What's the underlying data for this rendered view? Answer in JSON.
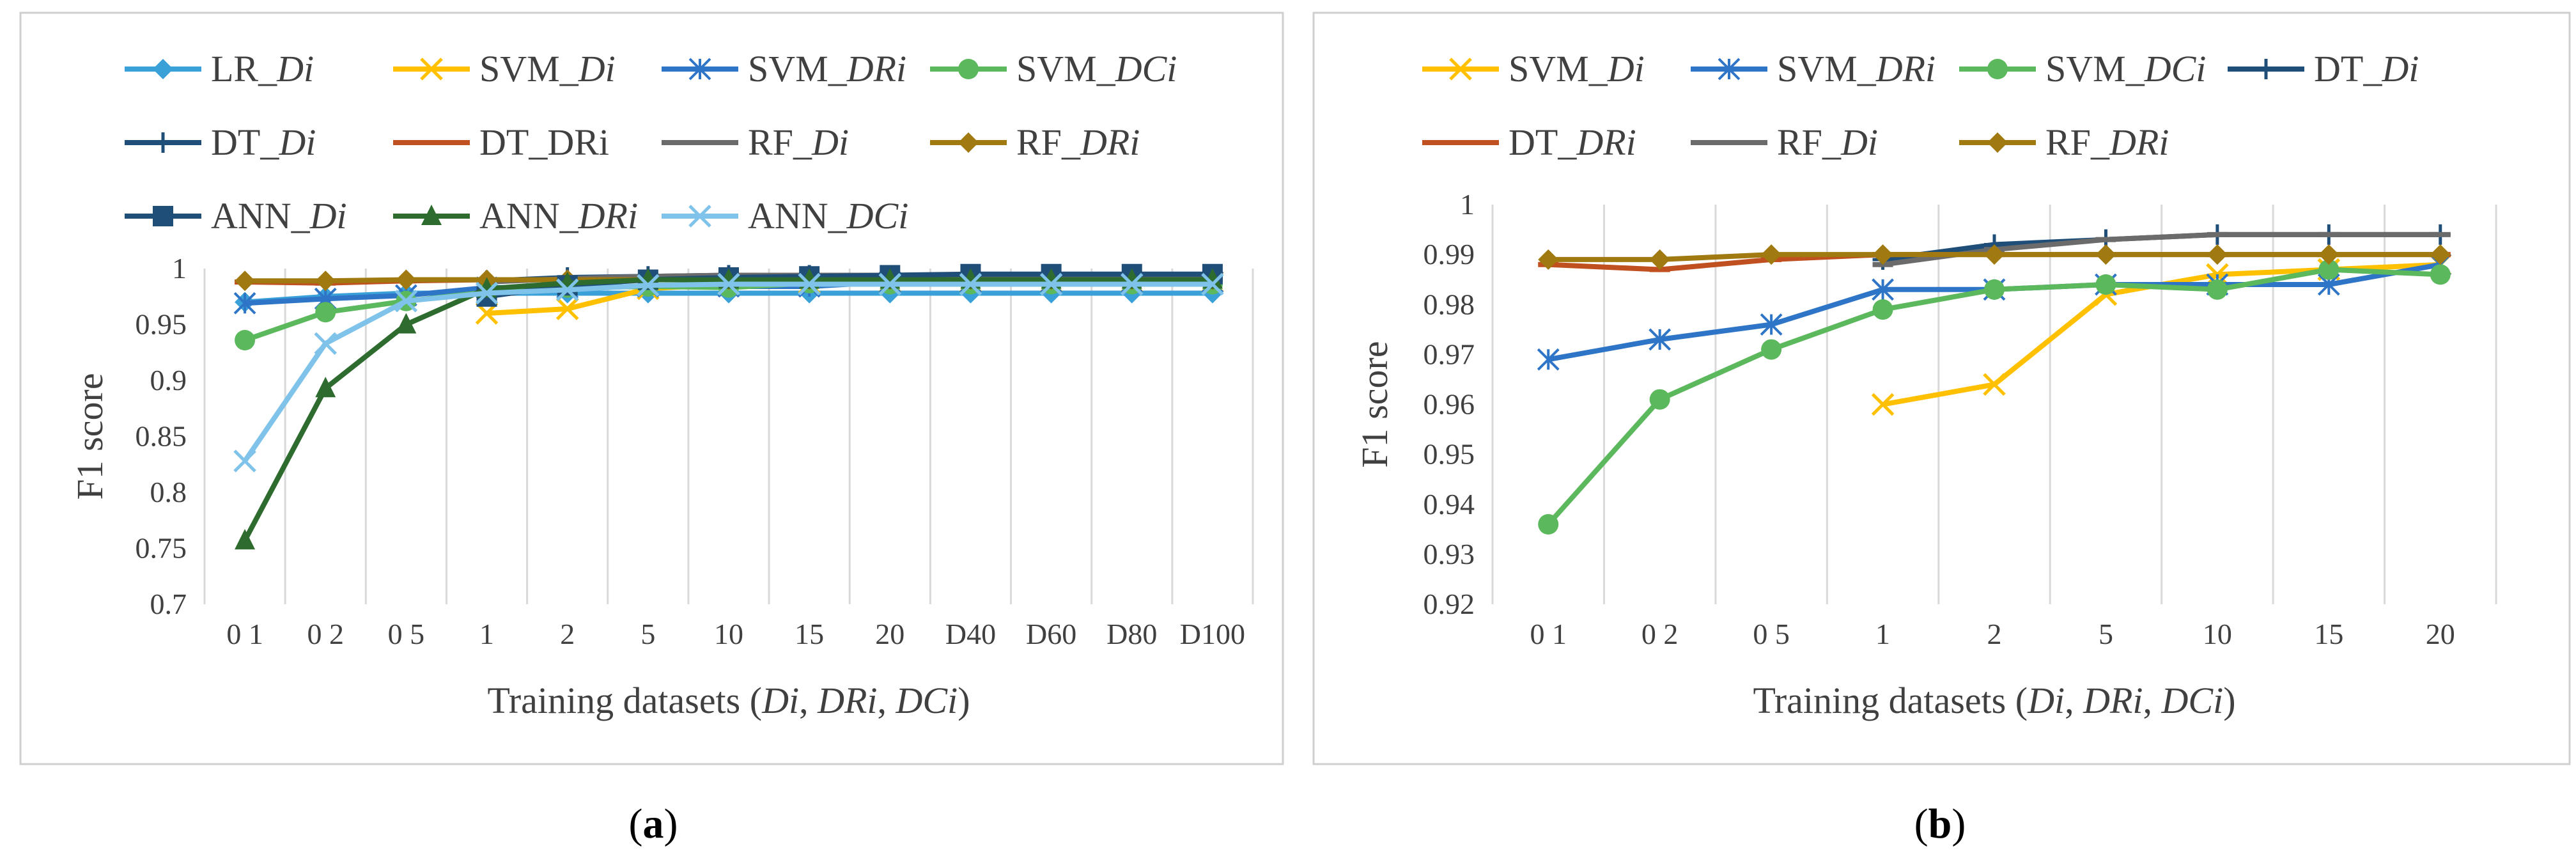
{
  "chart_data": [
    {
      "type": "line",
      "panel_label": "a",
      "categories": [
        "0 1",
        "0 2",
        "0 5",
        "1",
        "2",
        "5",
        "10",
        "15",
        "20",
        "D40",
        "D60",
        "D80",
        "D100"
      ],
      "ylabel": "F1 score",
      "xlabel": {
        "prefix": "Training datasets (",
        "parts": [
          {
            "text": "Di",
            "italic": true
          },
          {
            "text": ", ",
            "italic": false
          },
          {
            "text": "DRi",
            "italic": true
          },
          {
            "text": ", ",
            "italic": false
          },
          {
            "text": "DCi",
            "italic": true
          },
          {
            "text": ")",
            "italic": false
          }
        ]
      },
      "ylim": [
        0.7,
        1.0
      ],
      "yticks": [
        0.7,
        0.75,
        0.8,
        0.85,
        0.9,
        0.95,
        1
      ],
      "ytick_labels": [
        "0.7",
        "0.75",
        "0.8",
        "0.85",
        "0.9",
        "0.95",
        "1"
      ],
      "grid": "vertical",
      "legend_position": "top",
      "series": [
        {
          "name": "LR_Di",
          "name_plain": "LR_",
          "name_italic": "Di",
          "color": "#3aa0d8",
          "marker": "diamond",
          "values": [
            0.97,
            0.975,
            0.978,
            0.978,
            0.978,
            0.978,
            0.978,
            0.978,
            0.978,
            0.978,
            0.978,
            0.978,
            0.978
          ]
        },
        {
          "name": "SVM_Di",
          "name_plain": "SVM_",
          "name_italic": "Di",
          "color": "#ffc000",
          "marker": "x",
          "values": [
            null,
            null,
            null,
            0.96,
            0.964,
            0.982,
            0.986,
            0.987,
            0.988,
            0.988,
            0.988,
            0.988,
            0.988
          ]
        },
        {
          "name": "SVM_DRi",
          "name_plain": "SVM_",
          "name_italic": "DRi",
          "color": "#2e75c8",
          "marker": "star",
          "values": [
            0.969,
            0.973,
            0.976,
            0.983,
            0.983,
            0.984,
            0.984,
            0.984,
            0.988,
            0.988,
            0.988,
            0.988,
            0.988
          ]
        },
        {
          "name": "SVM_DCi",
          "name_plain": "SVM_",
          "name_italic": "DCi",
          "color": "#5cb85c",
          "marker": "circle",
          "values": [
            0.936,
            0.961,
            0.971,
            0.979,
            0.983,
            0.984,
            0.983,
            0.987,
            0.986,
            0.986,
            0.986,
            0.986,
            0.986
          ]
        },
        {
          "name": "DT_Di",
          "name_plain": "DT_",
          "name_italic": "Di",
          "color": "#1f4e79",
          "marker": "plus",
          "values": [
            null,
            null,
            null,
            0.989,
            0.992,
            0.993,
            0.994,
            0.994,
            0.994,
            0.994,
            0.994,
            0.994,
            0.994
          ]
        },
        {
          "name": "DT_DRi",
          "name_plain": "DT_DRi",
          "name_italic": "",
          "color": "#c0501f",
          "marker": "dash",
          "values": [
            0.988,
            0.987,
            0.989,
            0.99,
            0.99,
            0.99,
            0.99,
            0.99,
            0.99,
            0.99,
            0.99,
            0.99,
            0.99
          ]
        },
        {
          "name": "RF_Di",
          "name_plain": "RF_",
          "name_italic": "Di",
          "color": "#6b6b6b",
          "marker": "dash",
          "values": [
            null,
            null,
            null,
            0.988,
            0.991,
            0.993,
            0.994,
            0.994,
            0.994,
            0.994,
            0.994,
            0.994,
            0.994
          ]
        },
        {
          "name": "RF_DRi",
          "name_plain": "RF_",
          "name_italic": "DRi",
          "color": "#a07a10",
          "marker": "diamond",
          "values": [
            0.989,
            0.989,
            0.99,
            0.99,
            0.99,
            0.99,
            0.99,
            0.99,
            0.99,
            0.99,
            0.99,
            0.99,
            0.99
          ]
        },
        {
          "name": "ANN_Di",
          "name_plain": "ANN_",
          "name_italic": "Di",
          "color": "#1f4e79",
          "marker": "square",
          "values": [
            null,
            null,
            null,
            0.975,
            0.985,
            0.99,
            0.992,
            0.993,
            0.994,
            0.995,
            0.995,
            0.995,
            0.995
          ]
        },
        {
          "name": "ANN_DRi",
          "name_plain": "ANN_",
          "name_italic": "DRi",
          "color": "#2e6b2e",
          "marker": "triangle",
          "values": [
            0.757,
            0.893,
            0.95,
            0.982,
            0.987,
            0.99,
            0.99,
            0.99,
            0.99,
            0.99,
            0.99,
            0.99,
            0.99
          ]
        },
        {
          "name": "ANN_DCi",
          "name_plain": "ANN_",
          "name_italic": "DCi",
          "color": "#7fc3ea",
          "marker": "x",
          "values": [
            0.828,
            0.933,
            0.971,
            0.978,
            0.981,
            0.985,
            0.986,
            0.986,
            0.986,
            0.986,
            0.986,
            0.986,
            0.986
          ]
        }
      ]
    },
    {
      "type": "line",
      "panel_label": "b",
      "categories": [
        "0 1",
        "0 2",
        "0 5",
        "1",
        "2",
        "5",
        "10",
        "15",
        "20"
      ],
      "ylabel": "F1 score",
      "xlabel": {
        "prefix": "Training datasets (",
        "parts": [
          {
            "text": "Di",
            "italic": true
          },
          {
            "text": ", ",
            "italic": false
          },
          {
            "text": "DRi",
            "italic": true
          },
          {
            "text": ", ",
            "italic": false
          },
          {
            "text": "DCi",
            "italic": true
          },
          {
            "text": ")",
            "italic": false
          }
        ]
      },
      "ylim": [
        0.92,
        1.0
      ],
      "yticks": [
        0.92,
        0.93,
        0.94,
        0.95,
        0.96,
        0.97,
        0.98,
        0.99,
        1
      ],
      "ytick_labels": [
        "0.92",
        "0.93",
        "0.94",
        "0.95",
        "0.96",
        "0.97",
        "0.98",
        "0.99",
        "1"
      ],
      "grid": "vertical",
      "legend_position": "top",
      "series": [
        {
          "name": "SVM_Di",
          "name_plain": "SVM_",
          "name_italic": "Di",
          "color": "#ffc000",
          "marker": "x",
          "values": [
            null,
            null,
            null,
            0.96,
            0.964,
            0.982,
            0.986,
            0.987,
            0.988
          ]
        },
        {
          "name": "SVM_DRi",
          "name_plain": "SVM_",
          "name_italic": "DRi",
          "color": "#2e75c8",
          "marker": "star",
          "values": [
            0.969,
            0.973,
            0.976,
            0.983,
            0.983,
            0.984,
            0.984,
            0.984,
            0.988
          ]
        },
        {
          "name": "SVM_DCi",
          "name_plain": "SVM_",
          "name_italic": "DCi",
          "color": "#5cb85c",
          "marker": "circle",
          "values": [
            0.936,
            0.961,
            0.971,
            0.979,
            0.983,
            0.984,
            0.983,
            0.987,
            0.986
          ]
        },
        {
          "name": "DT_Di",
          "name_plain": "DT_",
          "name_italic": "Di",
          "color": "#1f4e79",
          "marker": "plus",
          "values": [
            null,
            null,
            null,
            0.989,
            0.992,
            0.993,
            0.994,
            0.994,
            0.994
          ]
        },
        {
          "name": "DT_DRi",
          "name_plain": "DT_",
          "name_italic": "DRi",
          "color": "#c0501f",
          "marker": "dash",
          "values": [
            0.988,
            0.987,
            0.989,
            0.99,
            0.99,
            0.99,
            0.99,
            0.99,
            0.99
          ]
        },
        {
          "name": "RF_Di",
          "name_plain": "RF_",
          "name_italic": "Di",
          "color": "#6b6b6b",
          "marker": "dash",
          "values": [
            null,
            null,
            null,
            0.988,
            0.991,
            0.993,
            0.994,
            0.994,
            0.994
          ]
        },
        {
          "name": "RF_DRi",
          "name_plain": "RF_",
          "name_italic": "DRi",
          "color": "#a07a10",
          "marker": "diamond",
          "values": [
            0.989,
            0.989,
            0.99,
            0.99,
            0.99,
            0.99,
            0.99,
            0.99,
            0.99
          ]
        }
      ]
    }
  ]
}
